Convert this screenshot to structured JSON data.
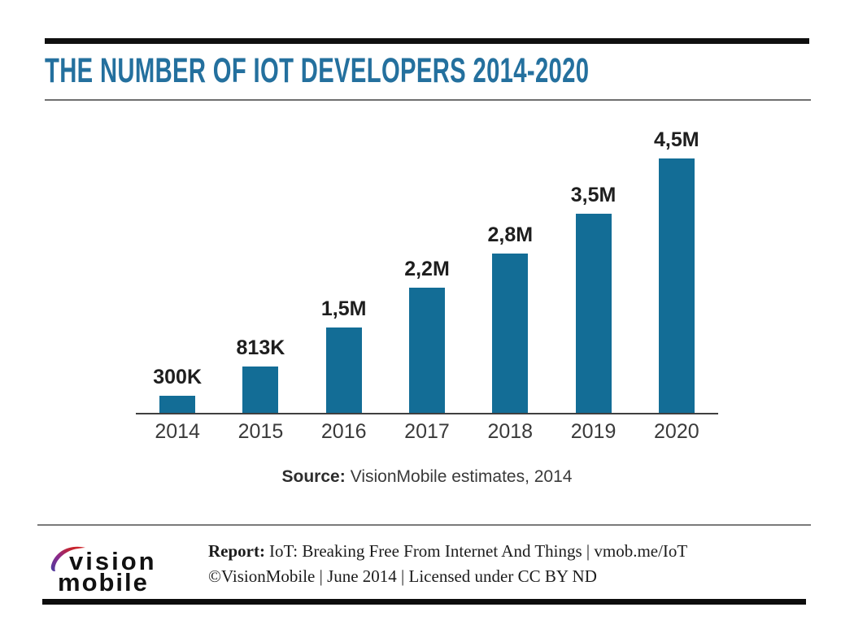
{
  "page": {
    "title": "THE NUMBER OF IOT DEVELOPERS 2014-2020"
  },
  "chart_data": {
    "type": "bar",
    "title": "THE NUMBER OF IOT DEVELOPERS 2014-2020",
    "categories": [
      "2014",
      "2015",
      "2016",
      "2017",
      "2018",
      "2019",
      "2020"
    ],
    "values": [
      300000,
      813000,
      1500000,
      2200000,
      2800000,
      3500000,
      4500000
    ],
    "value_labels": [
      "300K",
      "813K",
      "1,5M",
      "2,2M",
      "2,8M",
      "3,5M",
      "4,5M"
    ],
    "xlabel": "",
    "ylabel": "",
    "ylim": [
      0,
      4500000
    ],
    "grid": false,
    "legend": false,
    "bar_color": "#136d96"
  },
  "source": {
    "label": "Source:",
    "text": "VisionMobile estimates, 2014"
  },
  "footer": {
    "logo": {
      "line1": "vision",
      "line2": "mobile"
    },
    "report_label": "Report:",
    "report_text": "IoT: Breaking Free From Internet And Things | vmob.me/IoT",
    "copyright_text": "©VisionMobile | June 2014 | Licensed under CC BY ND"
  },
  "colors": {
    "title": "#24709e",
    "bar": "#136d96",
    "rule_dark": "#0f0f0f",
    "rule_gray": "#6f6f6f",
    "axis": "#3f3f3f"
  }
}
